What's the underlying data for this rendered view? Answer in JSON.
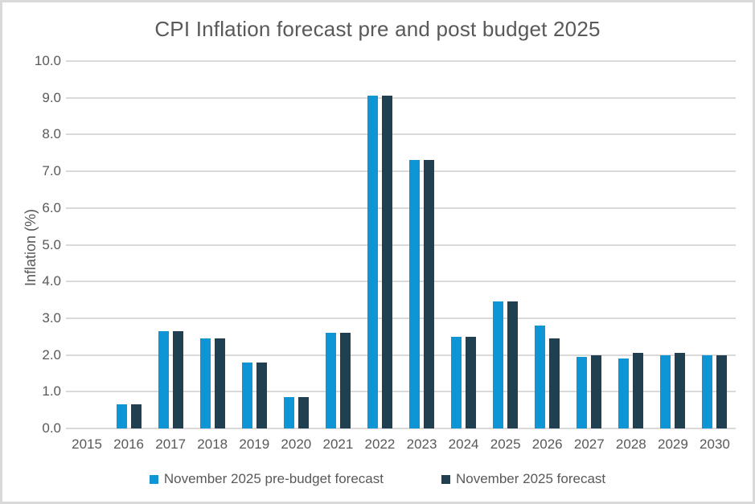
{
  "chart_data": {
    "type": "bar",
    "title": "CPI Inflation forecast pre and post budget 2025",
    "xlabel": "",
    "ylabel": "Inflation (%)",
    "ylim": [
      0,
      10
    ],
    "ytick_step": 1,
    "ytick_format": "one-decimal",
    "grid": true,
    "legend_position": "bottom",
    "categories": [
      "2015",
      "2016",
      "2017",
      "2018",
      "2019",
      "2020",
      "2021",
      "2022",
      "2023",
      "2024",
      "2025",
      "2026",
      "2027",
      "2028",
      "2029",
      "2030"
    ],
    "series": [
      {
        "name": "November 2025 pre-budget forecast",
        "color": "#0e95d6",
        "values": [
          0,
          0.65,
          2.65,
          2.45,
          1.8,
          0.85,
          2.6,
          9.05,
          7.3,
          2.5,
          3.45,
          2.8,
          1.95,
          1.9,
          2.0,
          2.0
        ]
      },
      {
        "name": "November 2025 forecast",
        "color": "#203f50",
        "values": [
          0,
          0.65,
          2.65,
          2.45,
          1.8,
          0.85,
          2.6,
          9.05,
          7.3,
          2.5,
          3.45,
          2.45,
          2.0,
          2.05,
          2.05,
          2.0
        ]
      }
    ]
  },
  "colors": {
    "background": "#ffffff",
    "border": "#d9d9d9",
    "gridline": "#d9d9d9",
    "text": "#595959"
  }
}
